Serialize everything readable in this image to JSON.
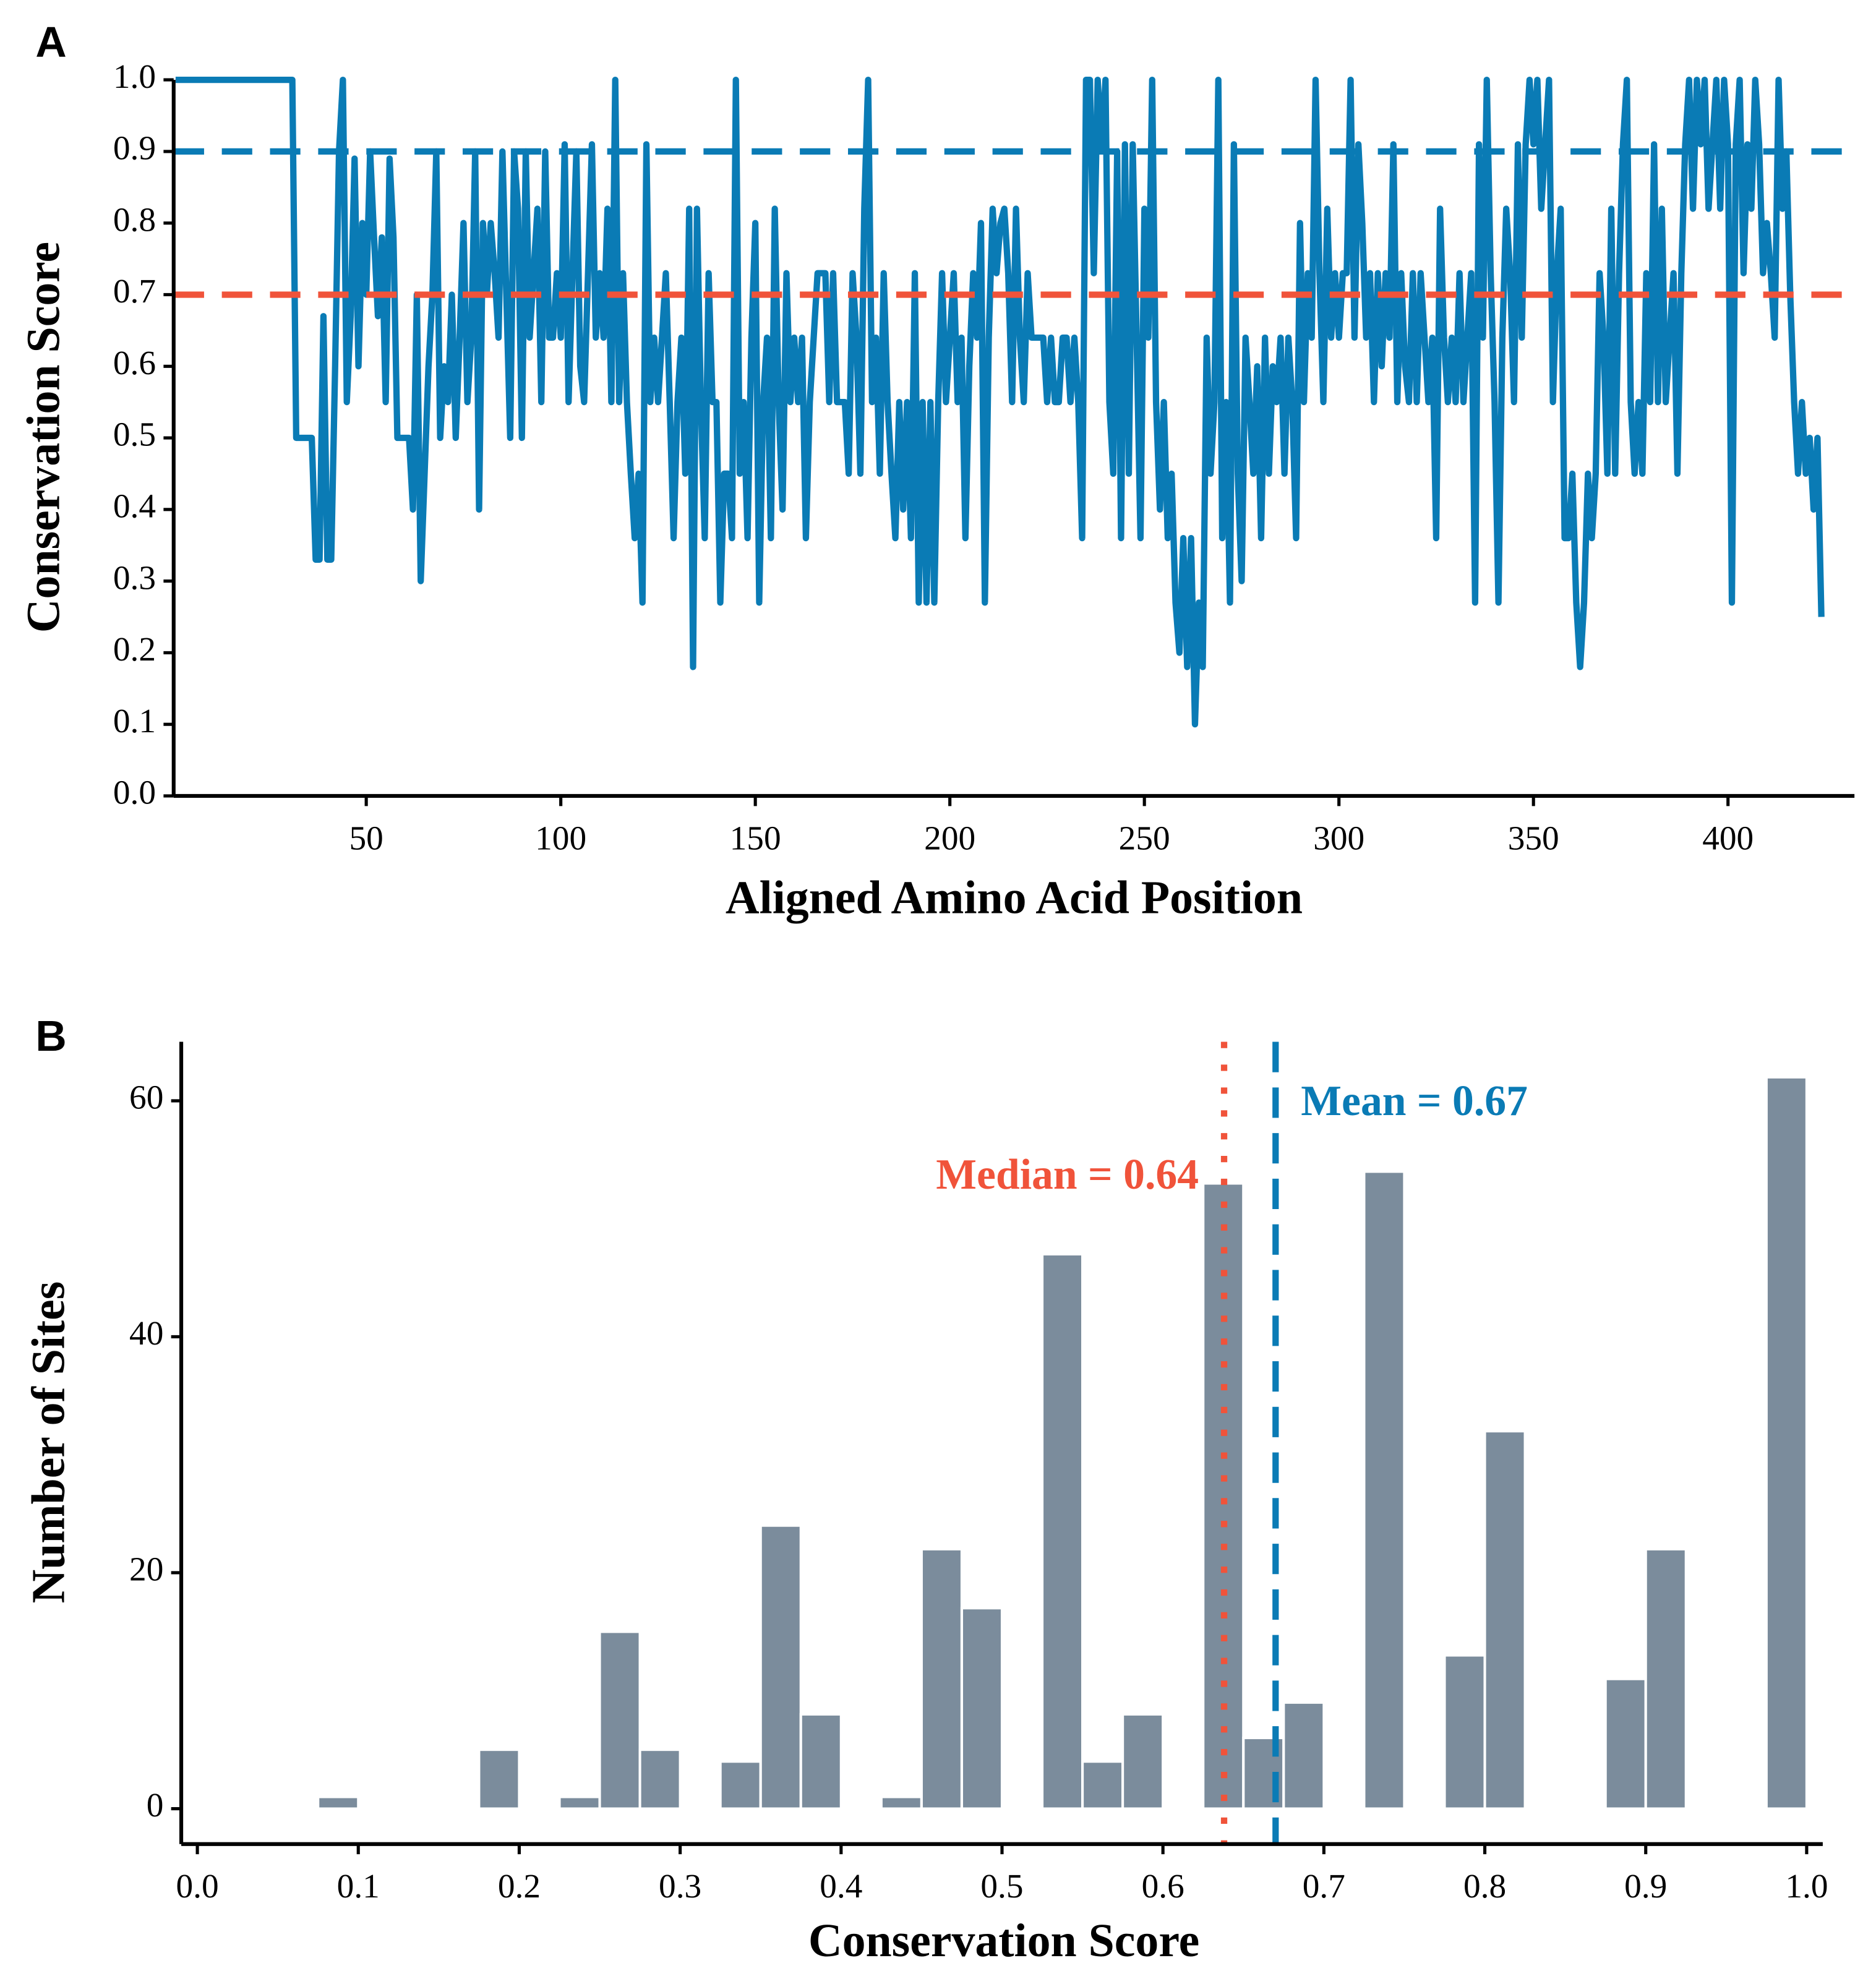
{
  "chart_data": [
    {
      "type": "line",
      "panel": "A",
      "xlabel": "Aligned Amino Acid Position",
      "ylabel": "Conservation Score",
      "x": [
        1,
        2,
        3,
        4,
        5,
        6,
        7,
        8,
        9,
        10,
        11,
        12,
        13,
        14,
        15,
        16,
        17,
        18,
        19,
        20,
        21,
        22,
        23,
        24,
        25,
        26,
        27,
        28,
        29,
        30,
        31,
        32,
        33,
        34,
        35,
        36,
        37,
        38,
        39,
        40,
        41,
        42,
        43,
        44,
        45,
        46,
        47,
        48,
        49,
        50,
        51,
        52,
        53,
        54,
        55,
        56,
        57,
        58,
        59,
        60,
        61,
        62,
        63,
        64,
        65,
        66,
        67,
        68,
        69,
        70,
        71,
        72,
        73,
        74,
        75,
        76,
        77,
        78,
        79,
        80,
        81,
        82,
        83,
        84,
        85,
        86,
        87,
        88,
        89,
        90,
        91,
        92,
        93,
        94,
        95,
        96,
        97,
        98,
        99,
        100,
        101,
        102,
        103,
        104,
        105,
        106,
        107,
        108,
        109,
        110,
        111,
        112,
        113,
        114,
        115,
        116,
        117,
        118,
        119,
        120,
        121,
        122,
        123,
        124,
        125,
        126,
        127,
        128,
        129,
        130,
        131,
        132,
        133,
        134,
        135,
        136,
        137,
        138,
        139,
        140,
        141,
        142,
        143,
        144,
        145,
        146,
        147,
        148,
        149,
        150,
        151,
        152,
        153,
        154,
        155,
        156,
        157,
        158,
        159,
        160,
        161,
        162,
        163,
        164,
        165,
        166,
        167,
        168,
        169,
        170,
        171,
        172,
        173,
        174,
        175,
        176,
        177,
        178,
        179,
        180,
        181,
        182,
        183,
        184,
        185,
        186,
        187,
        188,
        189,
        190,
        191,
        192,
        193,
        194,
        195,
        196,
        197,
        198,
        199,
        200,
        201,
        202,
        203,
        204,
        205,
        206,
        207,
        208,
        209,
        210,
        211,
        212,
        213,
        214,
        215,
        216,
        217,
        218,
        219,
        220,
        221,
        222,
        223,
        224,
        225,
        226,
        227,
        228,
        229,
        230,
        231,
        232,
        233,
        234,
        235,
        236,
        237,
        238,
        239,
        240,
        241,
        242,
        243,
        244,
        245,
        246,
        247,
        248,
        249,
        250,
        251,
        252,
        253,
        254,
        255,
        256,
        257,
        258,
        259,
        260,
        261,
        262,
        263,
        264,
        265,
        266,
        267,
        268,
        269,
        270,
        271,
        272,
        273,
        274,
        275,
        276,
        277,
        278,
        279,
        280,
        281,
        282,
        283,
        284,
        285,
        286,
        287,
        288,
        289,
        290,
        291,
        292,
        293,
        294,
        295,
        296,
        297,
        298,
        299,
        300,
        301,
        302,
        303,
        304,
        305,
        306,
        307,
        308,
        309,
        310,
        311,
        312,
        313,
        314,
        315,
        316,
        317,
        318,
        319,
        320,
        321,
        322,
        323,
        324,
        325,
        326,
        327,
        328,
        329,
        330,
        331,
        332,
        333,
        334,
        335,
        336,
        337,
        338,
        339,
        340,
        341,
        342,
        343,
        344,
        345,
        346,
        347,
        348,
        349,
        350,
        351,
        352,
        353,
        354,
        355,
        356,
        357,
        358,
        359,
        360,
        361,
        362,
        363,
        364,
        365,
        366,
        367,
        368,
        369,
        370,
        371,
        372,
        373,
        374,
        375,
        376,
        377,
        378,
        379,
        380,
        381,
        382,
        383,
        384,
        385,
        386,
        387,
        388,
        389,
        390,
        391,
        392,
        393,
        394,
        395,
        396,
        397,
        398,
        399,
        400,
        401,
        402,
        403,
        404,
        405,
        406,
        407,
        408,
        409,
        410,
        411,
        412,
        413,
        414,
        415,
        416,
        417,
        418,
        419,
        420,
        421,
        422,
        423,
        424
      ],
      "values": [
        1,
        1,
        1,
        1,
        1,
        1,
        1,
        1,
        1,
        1,
        1,
        1,
        1,
        1,
        1,
        1,
        1,
        1,
        1,
        1,
        1,
        1,
        1,
        1,
        1,
        1,
        1,
        1,
        1,
        1,
        1,
        0.5,
        0.5,
        0.5,
        0.5,
        0.5,
        0.33,
        0.33,
        0.67,
        0.33,
        0.33,
        0.6,
        0.9,
        1,
        0.55,
        0.67,
        0.89,
        0.6,
        0.8,
        0.7,
        0.9,
        0.78,
        0.67,
        0.78,
        0.55,
        0.89,
        0.78,
        0.5,
        0.5,
        0.5,
        0.5,
        0.4,
        0.7,
        0.3,
        0.45,
        0.6,
        0.7,
        0.9,
        0.5,
        0.6,
        0.55,
        0.7,
        0.5,
        0.64,
        0.8,
        0.55,
        0.64,
        0.9,
        0.4,
        0.8,
        0.7,
        0.8,
        0.73,
        0.64,
        0.9,
        0.7,
        0.5,
        0.9,
        0.82,
        0.5,
        0.9,
        0.64,
        0.73,
        0.82,
        0.55,
        0.9,
        0.64,
        0.64,
        0.73,
        0.64,
        0.91,
        0.55,
        0.73,
        0.9,
        0.6,
        0.55,
        0.73,
        0.91,
        0.64,
        0.73,
        0.64,
        0.82,
        0.55,
        1,
        0.55,
        0.73,
        0.55,
        0.45,
        0.36,
        0.45,
        0.27,
        0.91,
        0.55,
        0.64,
        0.55,
        0.64,
        0.73,
        0.55,
        0.36,
        0.55,
        0.64,
        0.45,
        0.82,
        0.18,
        0.82,
        0.55,
        0.36,
        0.73,
        0.55,
        0.55,
        0.27,
        0.45,
        0.45,
        0.36,
        1,
        0.45,
        0.55,
        0.36,
        0.64,
        0.8,
        0.27,
        0.55,
        0.64,
        0.36,
        0.82,
        0.55,
        0.4,
        0.73,
        0.55,
        0.64,
        0.55,
        0.64,
        0.36,
        0.55,
        0.64,
        0.73,
        0.73,
        0.73,
        0.55,
        0.73,
        0.55,
        0.55,
        0.55,
        0.45,
        0.73,
        0.64,
        0.45,
        0.82,
        1,
        0.55,
        0.64,
        0.45,
        0.73,
        0.55,
        0.45,
        0.36,
        0.55,
        0.4,
        0.55,
        0.36,
        0.73,
        0.27,
        0.55,
        0.27,
        0.55,
        0.27,
        0.55,
        0.73,
        0.55,
        0.64,
        0.73,
        0.55,
        0.64,
        0.36,
        0.6,
        0.73,
        0.64,
        0.8,
        0.27,
        0.64,
        0.82,
        0.73,
        0.8,
        0.82,
        0.73,
        0.55,
        0.82,
        0.64,
        0.55,
        0.73,
        0.64,
        0.64,
        0.64,
        0.64,
        0.55,
        0.64,
        0.55,
        0.55,
        0.64,
        0.64,
        0.55,
        0.64,
        0.55,
        0.36,
        1,
        1,
        0.73,
        1,
        0.9,
        1,
        0.55,
        0.45,
        0.9,
        0.36,
        0.91,
        0.45,
        0.91,
        0.64,
        0.36,
        0.82,
        0.64,
        1,
        0.55,
        0.4,
        0.55,
        0.36,
        0.45,
        0.27,
        0.2,
        0.36,
        0.18,
        0.36,
        0.1,
        0.27,
        0.18,
        0.64,
        0.45,
        0.55,
        1,
        0.36,
        0.55,
        0.27,
        0.91,
        0.45,
        0.3,
        0.64,
        0.55,
        0.45,
        0.6,
        0.36,
        0.64,
        0.45,
        0.6,
        0.55,
        0.64,
        0.45,
        0.64,
        0.55,
        0.36,
        0.8,
        0.55,
        0.73,
        0.64,
        1,
        0.73,
        0.55,
        0.82,
        0.64,
        0.73,
        0.64,
        0.73,
        0.73,
        1,
        0.64,
        0.91,
        0.8,
        0.64,
        0.73,
        0.55,
        0.73,
        0.6,
        0.73,
        0.64,
        0.91,
        0.55,
        0.73,
        0.6,
        0.55,
        0.73,
        0.55,
        0.73,
        0.64,
        0.55,
        0.64,
        0.36,
        0.82,
        0.64,
        0.55,
        0.64,
        0.55,
        0.73,
        0.55,
        0.64,
        0.73,
        0.27,
        0.91,
        0.64,
        1,
        0.73,
        0.55,
        0.27,
        0.64,
        0.82,
        0.73,
        0.55,
        0.91,
        0.64,
        0.91,
        1,
        0.91,
        1,
        0.82,
        0.91,
        1,
        0.55,
        0.73,
        0.82,
        0.36,
        0.36,
        0.45,
        0.27,
        0.18,
        0.27,
        0.45,
        0.36,
        0.45,
        0.73,
        0.64,
        0.45,
        0.82,
        0.45,
        0.73,
        0.91,
        1,
        0.55,
        0.45,
        0.55,
        0.45,
        0.73,
        0.55,
        0.91,
        0.55,
        0.82,
        0.55,
        0.64,
        0.73,
        0.45,
        0.73,
        0.91,
        1,
        0.82,
        1,
        0.91,
        1,
        0.82,
        0.91,
        1,
        0.82,
        1,
        0.91,
        0.27,
        0.91,
        1,
        0.73,
        0.91,
        0.82,
        1,
        0.91,
        0.73,
        0.8,
        0.73,
        0.64,
        1,
        0.82,
        0.9,
        0.7,
        0.55,
        0.45,
        0.55,
        0.45,
        0.5,
        0.4,
        0.5,
        0.25
      ],
      "color": "#0a7bb5",
      "hlines": [
        {
          "value": 0.9,
          "color": "#0a7bb5"
        },
        {
          "value": 0.7,
          "color": "#f0533a"
        }
      ],
      "xlim": [
        0.5,
        432.5
      ],
      "xticks": [
        50,
        100,
        150,
        200,
        250,
        300,
        350,
        400
      ],
      "ylim": [
        0,
        1
      ],
      "yticks": [
        {
          "value": 0,
          "label": "0.0"
        },
        0.1,
        0.2,
        0.3,
        0.4,
        0.5,
        0.6,
        0.7,
        0.8,
        0.9,
        {
          "value": 1,
          "label": "1.0"
        }
      ]
    },
    {
      "type": "histogram",
      "panel": "B",
      "xlabel": "Conservation Score",
      "ylabel": "Number of Sites",
      "bins": [
        0,
        0.025,
        0.05,
        0.075,
        0.1,
        0.125,
        0.15,
        0.175,
        0.2,
        0.225,
        0.25,
        0.275,
        0.3,
        0.325,
        0.35,
        0.375,
        0.4,
        0.425,
        0.45,
        0.475,
        0.5,
        0.525,
        0.55,
        0.575,
        0.6,
        0.625,
        0.65,
        0.675,
        0.7,
        0.725,
        0.75,
        0.775,
        0.8,
        0.825,
        0.85,
        0.875,
        0.9,
        0.925,
        0.95,
        0.975,
        1
      ],
      "counts": [
        0,
        0,
        0,
        1,
        0,
        0,
        0,
        5,
        0,
        1,
        15,
        5,
        0,
        4,
        24,
        8,
        0,
        1,
        22,
        17,
        0,
        47,
        4,
        8,
        0,
        53,
        6,
        9,
        0,
        54,
        0,
        13,
        32,
        0,
        0,
        11,
        22,
        0,
        0,
        62
      ],
      "color": "#7b8c9c",
      "vlines": [
        {
          "value": 0.638,
          "color": "#f0533a",
          "style": "dotted",
          "label": "Median = 0.64"
        },
        {
          "value": 0.67,
          "color": "#0a7bb5",
          "style": "dashed",
          "label": "Mean = 0.67"
        }
      ],
      "xlim": [
        -0.01,
        1.01
      ],
      "xticks": [
        {
          "value": 0,
          "label": "0.0"
        },
        0.1,
        0.2,
        0.3,
        0.4,
        0.5,
        0.6,
        0.7,
        0.8,
        0.9,
        {
          "value": 1,
          "label": "1.0"
        }
      ],
      "ylim": [
        -3,
        65
      ],
      "yticks": [
        0,
        20,
        40,
        60
      ]
    }
  ]
}
